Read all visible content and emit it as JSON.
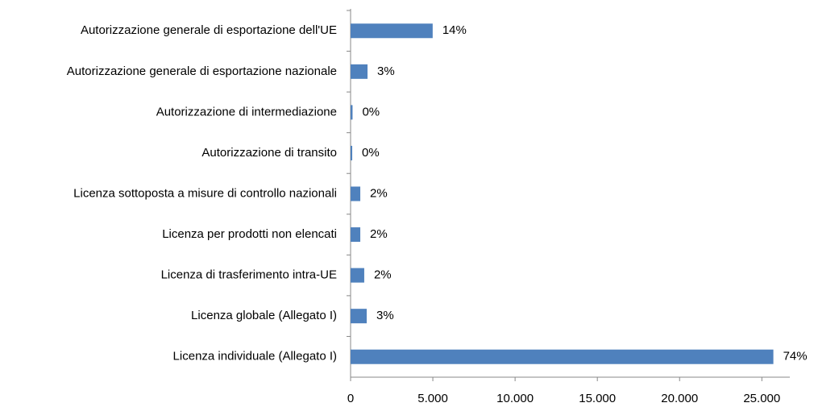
{
  "chart_data": {
    "type": "bar",
    "orientation": "horizontal",
    "categories": [
      "Autorizzazione generale di esportazione dell'UE",
      "Autorizzazione generale di esportazione nazionale",
      "Autorizzazione di intermediazione",
      "Autorizzazione di transito",
      "Licenza sottoposta a misure di controllo nazionali",
      "Licenza per prodotti non elencati",
      "Licenza di trasferimento intra-UE",
      "Licenza globale (Allegato I)",
      "Licenza individuale (Allegato I)"
    ],
    "values": [
      4990,
      1030,
      120,
      100,
      590,
      590,
      830,
      980,
      25700
    ],
    "value_labels": [
      "14%",
      "3%",
      "0%",
      "0%",
      "2%",
      "2%",
      "2%",
      "3%",
      "74%"
    ],
    "color": "#4f81bd",
    "xlim": [
      0,
      26700
    ],
    "xticks": [
      0,
      {
        "value": 5000,
        "label": "5.000"
      },
      {
        "value": 10000,
        "label": "10.000"
      },
      {
        "value": 15000,
        "label": "15.000"
      },
      {
        "value": 20000,
        "label": "20.000"
      },
      {
        "value": 25000,
        "label": "25.000"
      }
    ],
    "grid": false
  }
}
